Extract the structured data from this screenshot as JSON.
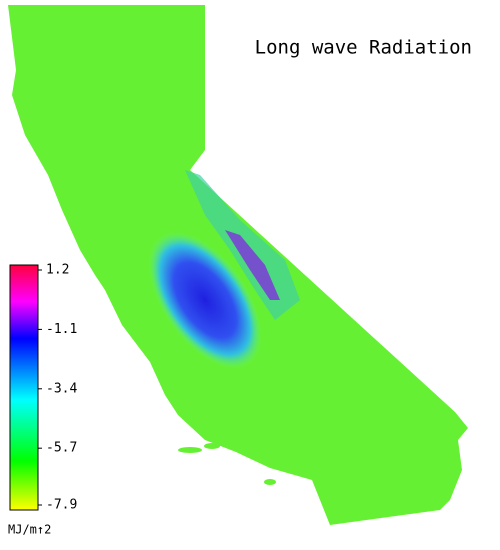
{
  "title": "Long wave Radiation",
  "colorbar": {
    "ticks": [
      1.2,
      -1.1,
      -3.4,
      -5.7,
      -7.9
    ],
    "unit": "MJ/m↑2"
  }
}
